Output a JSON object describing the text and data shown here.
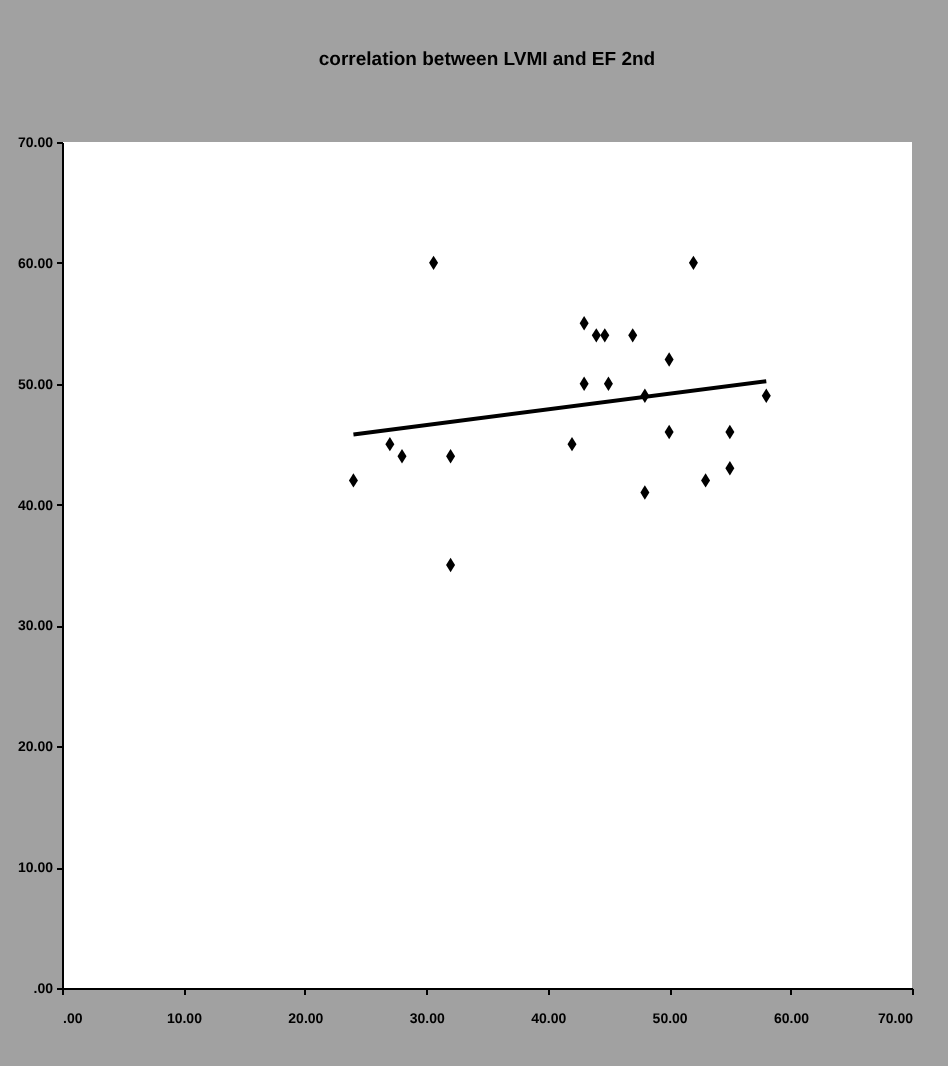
{
  "chart_data": {
    "type": "scatter",
    "title": "correlation between LVMI and EF 2nd",
    "xlim": [
      0,
      70
    ],
    "ylim": [
      0,
      70
    ],
    "xticks": [
      {
        "value": 0,
        "label": ".00"
      },
      {
        "value": 10,
        "label": "10.00"
      },
      {
        "value": 20,
        "label": "20.00"
      },
      {
        "value": 30,
        "label": "30.00"
      },
      {
        "value": 40,
        "label": "40.00"
      },
      {
        "value": 50,
        "label": "50.00"
      },
      {
        "value": 60,
        "label": "60.00"
      },
      {
        "value": 70,
        "label": "70.00"
      }
    ],
    "yticks": [
      {
        "value": 0,
        "label": ".00"
      },
      {
        "value": 10,
        "label": "10.00"
      },
      {
        "value": 20,
        "label": "20.00"
      },
      {
        "value": 30,
        "label": "30.00"
      },
      {
        "value": 40,
        "label": "40.00"
      },
      {
        "value": 50,
        "label": "50.00"
      },
      {
        "value": 60,
        "label": "60.00"
      },
      {
        "value": 70,
        "label": "70.00"
      }
    ],
    "grid": false,
    "series": [
      {
        "color": "#000000",
        "marker": "diamond",
        "x": [
          30.6,
          52,
          43,
          44,
          44.7,
          47,
          50,
          43,
          45,
          48,
          58,
          24,
          27,
          28,
          32,
          32,
          42,
          50,
          55,
          48,
          53,
          55
        ],
        "values": [
          60,
          60,
          55,
          54,
          54,
          54,
          52,
          50,
          50,
          49,
          49,
          42,
          45,
          44,
          44,
          35,
          45,
          46,
          46,
          41,
          42,
          43
        ]
      },
      {
        "type": "line",
        "color": "#000000",
        "marker": "none",
        "x": [
          24,
          58
        ],
        "values": [
          45.8,
          50.2
        ]
      }
    ]
  }
}
